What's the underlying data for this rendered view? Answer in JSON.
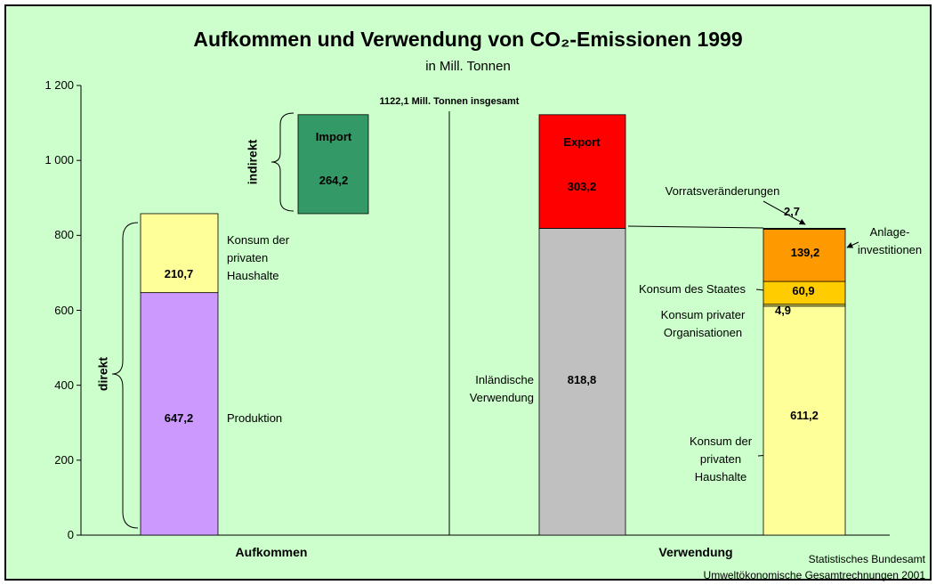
{
  "chart_data": {
    "type": "stacked_bar",
    "title": "Aufkommen und Verwendung von CO₂-Emissionen 1999",
    "subtitle": "in Mill. Tonnen",
    "total_annotation": "1122,1 Mill. Tonnen insgesamt",
    "direct_label": "direkt",
    "indirect_label": "indirekt",
    "groups": [
      "Aufkommen",
      "Verwendung"
    ],
    "source": [
      "Statistisches Bundesamt",
      "Umweltökonomische Gesamtrechnungen 2001"
    ],
    "ylim": [
      0,
      1200
    ],
    "yticks": [
      0,
      200,
      400,
      600,
      800,
      {
        "value": 1000,
        "label": "1 000"
      },
      {
        "value": 1200,
        "label": "1 200"
      }
    ],
    "bars": [
      {
        "segments": [
          {
            "name": "Produktion",
            "value": 647.2,
            "value_label": "647,2",
            "color": "#cc99ff"
          },
          {
            "name": "Konsum der\nprivaten\nHaushalte",
            "value": 210.7,
            "value_label": "210,7",
            "color": "#ffff99"
          }
        ]
      },
      {
        "floating": true,
        "segments": [
          {
            "name": "Import",
            "value": 264.2,
            "value_label": "264,2",
            "color": "#339966"
          }
        ]
      },
      {
        "segments": [
          {
            "name": "Inländische\nVerwendung",
            "value": 818.8,
            "value_label": "818,8",
            "color": "#c0c0c0"
          },
          {
            "name": "Export",
            "value": 303.2,
            "value_label": "303,2",
            "color": "#ff0000"
          }
        ]
      },
      {
        "segments": [
          {
            "name": "Konsum der\nprivaten\nHaushalte",
            "value": 611.2,
            "value_label": "611,2",
            "color": "#ffff99"
          },
          {
            "name": "Konsum privater\nOrganisationen",
            "value": 4.9,
            "value_label": "4,9",
            "color": "#ffff66"
          },
          {
            "name": "Konsum des Staates",
            "value": 60.9,
            "value_label": "60,9",
            "color": "#ffcc00"
          },
          {
            "name": "Anlage-\ninvestitionen",
            "value": 139.2,
            "value_label": "139,2",
            "color": "#ff9900"
          },
          {
            "name": "Vorratsveränderungen",
            "value": 2.7,
            "value_label": "2,7",
            "color": "#333333"
          }
        ]
      }
    ]
  }
}
